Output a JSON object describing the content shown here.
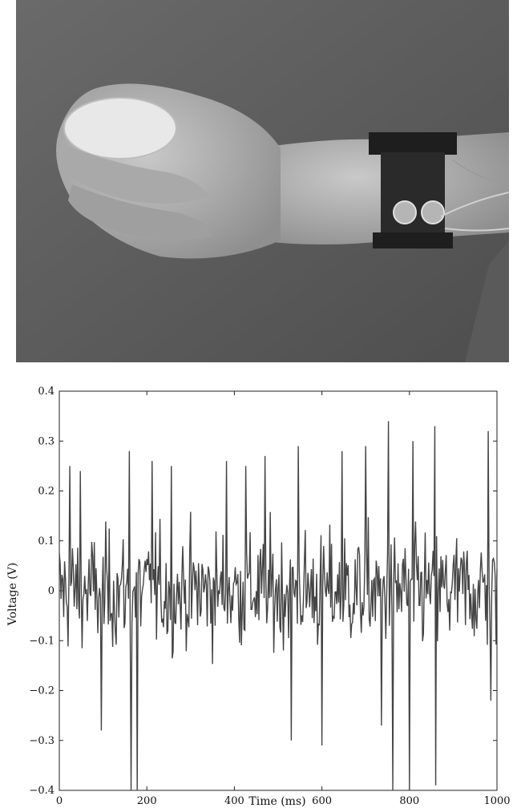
{
  "photo": {
    "description_icon": "wrist-sensor-photo-icon"
  },
  "chart_data": {
    "type": "line",
    "title": "",
    "xlabel": "Time (ms)",
    "ylabel": "Voltage (V)",
    "xlim": [
      0,
      1000
    ],
    "ylim": [
      -0.4,
      0.4
    ],
    "xticks": [
      0,
      200,
      400,
      600,
      800,
      1000
    ],
    "xtick_labels": [
      "0",
      "200",
      "400",
      "600",
      "800",
      "1000"
    ],
    "yticks": [
      -0.4,
      -0.3,
      -0.2,
      -0.1,
      0,
      0.1,
      0.2,
      0.3,
      0.4
    ],
    "ytick_labels": [
      "−0.4",
      "−0.3",
      "−0.2",
      "−0.1",
      "0",
      "0.1",
      "0.2",
      "0.3",
      "0.4"
    ],
    "grid": false,
    "line_color": "#444444",
    "series": [
      {
        "sample_interval_ms": 2,
        "amplitude_rms": 0.09,
        "peaks": [
          {
            "x": 24,
            "y": 0.25
          },
          {
            "x": 47,
            "y": 0.24
          },
          {
            "x": 160,
            "y": 0.28
          },
          {
            "x": 163,
            "y": -0.4
          },
          {
            "x": 178,
            "y": -0.4
          },
          {
            "x": 95,
            "y": -0.28
          },
          {
            "x": 212,
            "y": 0.26
          },
          {
            "x": 255,
            "y": 0.25
          },
          {
            "x": 382,
            "y": 0.26
          },
          {
            "x": 425,
            "y": 0.25
          },
          {
            "x": 470,
            "y": 0.27
          },
          {
            "x": 530,
            "y": -0.3
          },
          {
            "x": 545,
            "y": 0.29
          },
          {
            "x": 600,
            "y": -0.31
          },
          {
            "x": 645,
            "y": 0.28
          },
          {
            "x": 700,
            "y": 0.29
          },
          {
            "x": 735,
            "y": -0.27
          },
          {
            "x": 752,
            "y": 0.34
          },
          {
            "x": 762,
            "y": -0.4
          },
          {
            "x": 800,
            "y": -0.4
          },
          {
            "x": 808,
            "y": 0.3
          },
          {
            "x": 858,
            "y": 0.33
          },
          {
            "x": 860,
            "y": -0.39
          },
          {
            "x": 980,
            "y": 0.32
          },
          {
            "x": 985,
            "y": -0.22
          }
        ]
      }
    ]
  }
}
